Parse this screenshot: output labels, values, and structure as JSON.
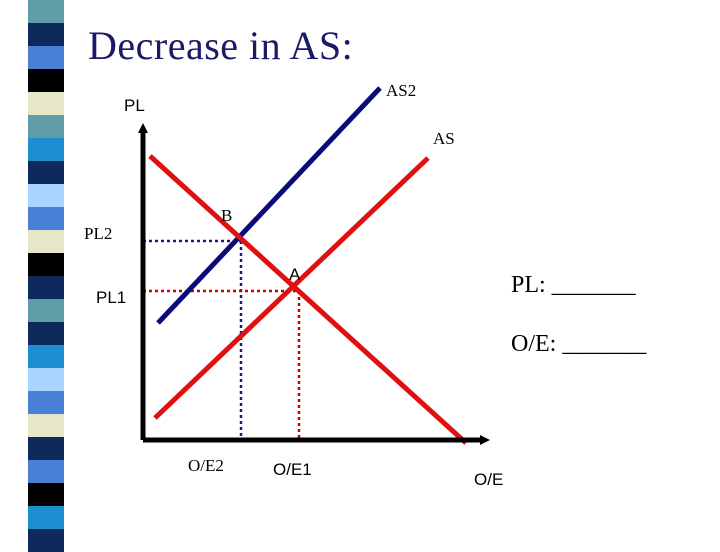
{
  "slide": {
    "title": "Decrease in AS:"
  },
  "diagram": {
    "y_axis_label": "PL",
    "x_axis_label": "O/E",
    "curves": {
      "as2": "AS2",
      "as": "AS"
    },
    "points": {
      "b": "B",
      "a": "A"
    },
    "levels": {
      "pl2": "PL2",
      "pl1": "PL1",
      "oe2": "O/E2",
      "oe1": "O/E1"
    },
    "prompts": {
      "pl": "PL: _______",
      "oe": "O/E: _______"
    }
  },
  "colors": {
    "title": "#1a1a66",
    "red": "#e01010",
    "navy": "#0a0a7a",
    "dotted_blue": "#1a1a88",
    "dotted_red": "#cc0000",
    "axis": "#000000"
  },
  "decor": {
    "stripe_colors": [
      "#5f9ea8",
      "#0e2a5c",
      "#4a7fd8",
      "#000000",
      "#e6e6c8",
      "#5f9ea8",
      "#1c8fd0",
      "#0e2a5c",
      "#a8d4ff",
      "#4a7fd8",
      "#e6e6c8",
      "#000000",
      "#0e2a5c",
      "#5f9ea8",
      "#0e2a5c",
      "#1c8fd0",
      "#a8d4ff",
      "#4a7fd8",
      "#e6e6c8",
      "#0e2a5c",
      "#4a7fd8",
      "#000000",
      "#1c8fd0",
      "#0e2a5c"
    ]
  }
}
